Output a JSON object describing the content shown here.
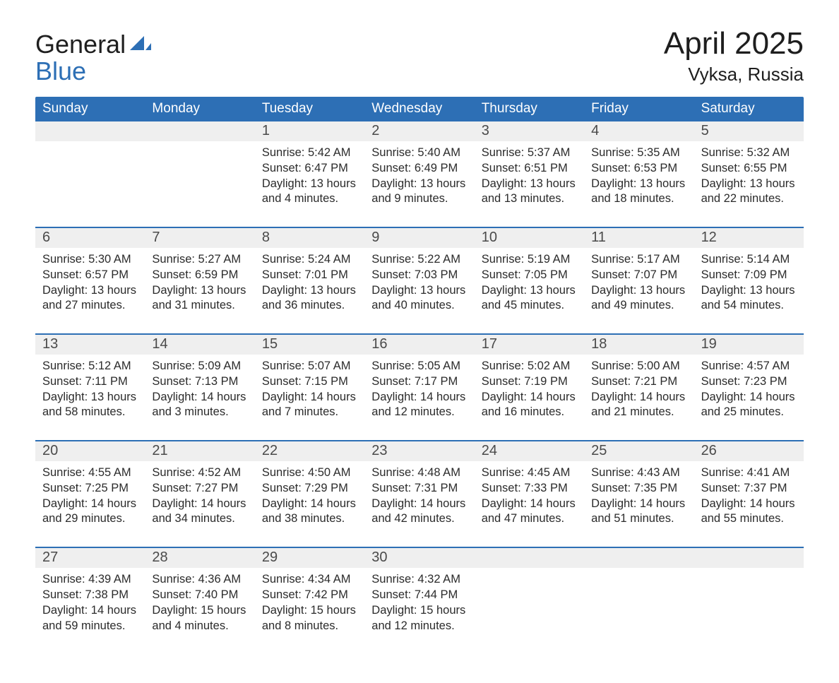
{
  "brand": {
    "line1": "General",
    "line2": "Blue",
    "logo_color": "#2d6fb5",
    "text_color_dark": "#1f1f1f"
  },
  "title": "April 2025",
  "location": "Vyksa, Russia",
  "colors": {
    "header_bg": "#2d6fb5",
    "header_text": "#ffffff",
    "daynum_bg": "#efefef",
    "body_text": "#2b2b2b",
    "page_bg": "#ffffff",
    "rule": "#2d6fb5"
  },
  "typography": {
    "title_fontsize": 44,
    "location_fontsize": 26,
    "weekday_fontsize": 19,
    "daynum_fontsize": 20,
    "cell_fontsize": 16.5,
    "logo_fontsize": 36
  },
  "weekdays": [
    "Sunday",
    "Monday",
    "Tuesday",
    "Wednesday",
    "Thursday",
    "Friday",
    "Saturday"
  ],
  "weeks": [
    [
      {
        "day": "",
        "sunrise": "",
        "sunset": "",
        "daylight": ""
      },
      {
        "day": "",
        "sunrise": "",
        "sunset": "",
        "daylight": ""
      },
      {
        "day": "1",
        "sunrise": "Sunrise: 5:42 AM",
        "sunset": "Sunset: 6:47 PM",
        "daylight": "Daylight: 13 hours and 4 minutes."
      },
      {
        "day": "2",
        "sunrise": "Sunrise: 5:40 AM",
        "sunset": "Sunset: 6:49 PM",
        "daylight": "Daylight: 13 hours and 9 minutes."
      },
      {
        "day": "3",
        "sunrise": "Sunrise: 5:37 AM",
        "sunset": "Sunset: 6:51 PM",
        "daylight": "Daylight: 13 hours and 13 minutes."
      },
      {
        "day": "4",
        "sunrise": "Sunrise: 5:35 AM",
        "sunset": "Sunset: 6:53 PM",
        "daylight": "Daylight: 13 hours and 18 minutes."
      },
      {
        "day": "5",
        "sunrise": "Sunrise: 5:32 AM",
        "sunset": "Sunset: 6:55 PM",
        "daylight": "Daylight: 13 hours and 22 minutes."
      }
    ],
    [
      {
        "day": "6",
        "sunrise": "Sunrise: 5:30 AM",
        "sunset": "Sunset: 6:57 PM",
        "daylight": "Daylight: 13 hours and 27 minutes."
      },
      {
        "day": "7",
        "sunrise": "Sunrise: 5:27 AM",
        "sunset": "Sunset: 6:59 PM",
        "daylight": "Daylight: 13 hours and 31 minutes."
      },
      {
        "day": "8",
        "sunrise": "Sunrise: 5:24 AM",
        "sunset": "Sunset: 7:01 PM",
        "daylight": "Daylight: 13 hours and 36 minutes."
      },
      {
        "day": "9",
        "sunrise": "Sunrise: 5:22 AM",
        "sunset": "Sunset: 7:03 PM",
        "daylight": "Daylight: 13 hours and 40 minutes."
      },
      {
        "day": "10",
        "sunrise": "Sunrise: 5:19 AM",
        "sunset": "Sunset: 7:05 PM",
        "daylight": "Daylight: 13 hours and 45 minutes."
      },
      {
        "day": "11",
        "sunrise": "Sunrise: 5:17 AM",
        "sunset": "Sunset: 7:07 PM",
        "daylight": "Daylight: 13 hours and 49 minutes."
      },
      {
        "day": "12",
        "sunrise": "Sunrise: 5:14 AM",
        "sunset": "Sunset: 7:09 PM",
        "daylight": "Daylight: 13 hours and 54 minutes."
      }
    ],
    [
      {
        "day": "13",
        "sunrise": "Sunrise: 5:12 AM",
        "sunset": "Sunset: 7:11 PM",
        "daylight": "Daylight: 13 hours and 58 minutes."
      },
      {
        "day": "14",
        "sunrise": "Sunrise: 5:09 AM",
        "sunset": "Sunset: 7:13 PM",
        "daylight": "Daylight: 14 hours and 3 minutes."
      },
      {
        "day": "15",
        "sunrise": "Sunrise: 5:07 AM",
        "sunset": "Sunset: 7:15 PM",
        "daylight": "Daylight: 14 hours and 7 minutes."
      },
      {
        "day": "16",
        "sunrise": "Sunrise: 5:05 AM",
        "sunset": "Sunset: 7:17 PM",
        "daylight": "Daylight: 14 hours and 12 minutes."
      },
      {
        "day": "17",
        "sunrise": "Sunrise: 5:02 AM",
        "sunset": "Sunset: 7:19 PM",
        "daylight": "Daylight: 14 hours and 16 minutes."
      },
      {
        "day": "18",
        "sunrise": "Sunrise: 5:00 AM",
        "sunset": "Sunset: 7:21 PM",
        "daylight": "Daylight: 14 hours and 21 minutes."
      },
      {
        "day": "19",
        "sunrise": "Sunrise: 4:57 AM",
        "sunset": "Sunset: 7:23 PM",
        "daylight": "Daylight: 14 hours and 25 minutes."
      }
    ],
    [
      {
        "day": "20",
        "sunrise": "Sunrise: 4:55 AM",
        "sunset": "Sunset: 7:25 PM",
        "daylight": "Daylight: 14 hours and 29 minutes."
      },
      {
        "day": "21",
        "sunrise": "Sunrise: 4:52 AM",
        "sunset": "Sunset: 7:27 PM",
        "daylight": "Daylight: 14 hours and 34 minutes."
      },
      {
        "day": "22",
        "sunrise": "Sunrise: 4:50 AM",
        "sunset": "Sunset: 7:29 PM",
        "daylight": "Daylight: 14 hours and 38 minutes."
      },
      {
        "day": "23",
        "sunrise": "Sunrise: 4:48 AM",
        "sunset": "Sunset: 7:31 PM",
        "daylight": "Daylight: 14 hours and 42 minutes."
      },
      {
        "day": "24",
        "sunrise": "Sunrise: 4:45 AM",
        "sunset": "Sunset: 7:33 PM",
        "daylight": "Daylight: 14 hours and 47 minutes."
      },
      {
        "day": "25",
        "sunrise": "Sunrise: 4:43 AM",
        "sunset": "Sunset: 7:35 PM",
        "daylight": "Daylight: 14 hours and 51 minutes."
      },
      {
        "day": "26",
        "sunrise": "Sunrise: 4:41 AM",
        "sunset": "Sunset: 7:37 PM",
        "daylight": "Daylight: 14 hours and 55 minutes."
      }
    ],
    [
      {
        "day": "27",
        "sunrise": "Sunrise: 4:39 AM",
        "sunset": "Sunset: 7:38 PM",
        "daylight": "Daylight: 14 hours and 59 minutes."
      },
      {
        "day": "28",
        "sunrise": "Sunrise: 4:36 AM",
        "sunset": "Sunset: 7:40 PM",
        "daylight": "Daylight: 15 hours and 4 minutes."
      },
      {
        "day": "29",
        "sunrise": "Sunrise: 4:34 AM",
        "sunset": "Sunset: 7:42 PM",
        "daylight": "Daylight: 15 hours and 8 minutes."
      },
      {
        "day": "30",
        "sunrise": "Sunrise: 4:32 AM",
        "sunset": "Sunset: 7:44 PM",
        "daylight": "Daylight: 15 hours and 12 minutes."
      },
      {
        "day": "",
        "sunrise": "",
        "sunset": "",
        "daylight": ""
      },
      {
        "day": "",
        "sunrise": "",
        "sunset": "",
        "daylight": ""
      },
      {
        "day": "",
        "sunrise": "",
        "sunset": "",
        "daylight": ""
      }
    ]
  ]
}
